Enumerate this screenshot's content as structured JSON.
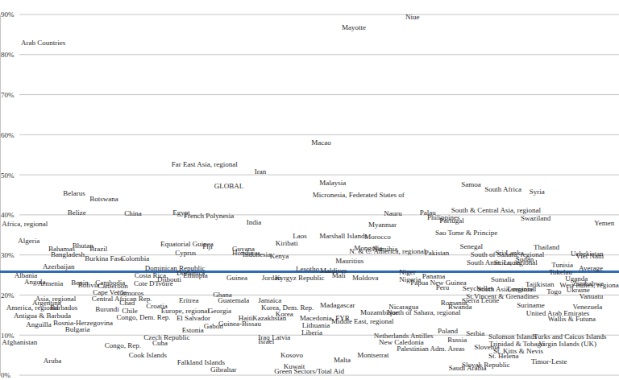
{
  "chart_data": {
    "type": "scatter",
    "marker": "text",
    "grid": true,
    "tick_labels": "y",
    "xlim": [
      0,
      100
    ],
    "ylim": [
      0,
      90
    ],
    "yticks": [
      {
        "value": 0,
        "label": "0%"
      },
      {
        "value": 10,
        "label": "10%"
      },
      {
        "value": 20,
        "label": "20%"
      },
      {
        "value": 30,
        "label": "30%"
      },
      {
        "value": 40,
        "label": "40%"
      },
      {
        "value": 50,
        "label": "50%"
      },
      {
        "value": 60,
        "label": "60%"
      },
      {
        "value": 70,
        "label": "70%"
      },
      {
        "value": 80,
        "label": "80%"
      },
      {
        "value": 90,
        "label": "90%"
      }
    ],
    "reference_line": 25.8,
    "point_labels": [
      "Niue",
      "Mayotte",
      "Arab Countries",
      "Macao",
      "Far East Asia, regional",
      "Iran",
      "Malaysia",
      "GLOBAL",
      "Samoa",
      "South Africa",
      "Syria",
      "Micronesia, Federated States of",
      "Belarus",
      "Botswana",
      "Belize",
      "China",
      "Egypt",
      "French Polynesia",
      "Nauru",
      "Palau",
      "South & Central Asia, regional",
      "Swaziland",
      "Yemen",
      "Philippines",
      "Portugal",
      "India",
      "Africa, regional",
      "Myanmar",
      "Sao Tome & Principe",
      "Laos",
      "Marshall Islands",
      "Morocco",
      "Algeria",
      "Kiribati",
      "Equatorial Guinea",
      "Fiji",
      "Bhutan",
      "Bahamas",
      "Brazil",
      "Guyana",
      "Mongolia",
      "Namibia",
      "Thailand",
      "Senegal",
      "Bangladesh",
      "Cyprus",
      "Honduras",
      "Indonesia",
      "N. & C. America, regional",
      "Pakistan",
      "Sri Lanka",
      "South of Sahara, regional",
      "Uzbekistan",
      "Viet Nam",
      "Kenya",
      "Burkina Faso",
      "Colombia",
      "Mauritius",
      "South America, regional",
      "Sudan",
      "St. Lucia",
      "Tunisia",
      "Azerbaijan",
      "Dominican Republic",
      "Lesotho",
      "Maldives",
      "Tokelau",
      "Average",
      "Dominica",
      "Djibouti",
      "Ethiopia",
      "Costa Rica",
      "Guinea",
      "Jordan",
      "Kyrgyz Republic",
      "Mali",
      "Moldova",
      "Niger",
      "Nigeria",
      "Panama",
      "Papua New Guinea",
      "Peru",
      "Somalia",
      "Uganda",
      "Albania",
      "Angola",
      "Armenia",
      "Benin",
      "Bolivia",
      "Cambodia",
      "Cameroon",
      "Cote D'Ivoire",
      "Tajikistan",
      "Seychelles",
      "South Asia, regional",
      "Tanzania",
      "Ukraine",
      "Zimbabwe",
      "West Indies, regional",
      "Cape Verde",
      "Comoros",
      "Ghana",
      "Togo",
      "Asia, regional",
      "Central African Rep.",
      "Eritrea",
      "Guatemala",
      "Jamaica",
      "Argentina",
      "Chad",
      "Croatia",
      "Romania",
      "Sierra Leone",
      "St.Vincent & Grenadines",
      "Suriname",
      "Venezuela",
      "Nicaragua",
      "Madagascar",
      "Rwanda",
      "Korea, Dem. Rep.",
      "America, regional",
      "Barbados",
      "Burundi",
      "Chile",
      "Europe, regional",
      "Georgia",
      "Mozambique",
      "North of Sahara, regional",
      "United Arab Emirates",
      "Wallis & Futuna",
      "Vanuatu",
      "Antigua & Barbuda",
      "Congo, Dem. Rep.",
      "El Salvador",
      "Korea",
      "Haiti",
      "Kazakhstan",
      "Macedonia, FYR",
      "Middle East, regional",
      "Lithuania",
      "Anguilla",
      "Bosnia-Herzegovina",
      "Bulgaria",
      "Estonia",
      "Gabon",
      "Guinea-Bissau",
      "Liberia",
      "Latvia",
      "Iraq",
      "Israel",
      "Netherlands Antilles",
      "Poland",
      "Serbia",
      "Solomon Islands",
      "Turks and Caicos Islands",
      "Trinidad & Tobago",
      "Virgin Islands (UK)",
      "Russia",
      "New Caledonia",
      "Czech Republic",
      "Cuba",
      "Afghanistan",
      "Slovenia",
      "St. Helena",
      "St. Kitts & Nevis",
      "Palestinian Adm. Areas",
      "Congo, Rep.",
      "Cook Islands",
      "Montserrat",
      "Kosovo",
      "Timor-Leste",
      "Aruba",
      "Falkland Islands",
      "Malta",
      "Slovak Republic",
      "Kuwait",
      "Saudi Arabia",
      "Gibraltar",
      "Green Sectors/Total Aid"
    ],
    "x": [
      65.5,
      55.2,
      3.4,
      50.3,
      27.7,
      41.1,
      51.6,
      34.6,
      74.5,
      78.3,
      85.5,
      50.5,
      10.2,
      14.5,
      10.9,
      20.1,
      27.9,
      29.7,
      62.0,
      67.8,
      72.9,
      84.1,
      96.0,
      69.0,
      71.0,
      39.8,
      0.3,
      59.5,
      70.3,
      47.3,
      51.6,
      58.9,
      2.9,
      44.5,
      25.9,
      32.7,
      11.7,
      7.8,
      14.5,
      37.5,
      57.2,
      60.2,
      86.2,
      74.3,
      8.2,
      28.3,
      37.5,
      39.2,
      56.4,
      68.6,
      80.0,
      76.0,
      92.2,
      93.0,
      43.6,
      13.7,
      19.5,
      54.2,
      75.4,
      83.3,
      79.8,
      89.1,
      6.9,
      23.4,
      47.8,
      51.7,
      88.7,
      93.5,
      28.5,
      25.4,
      29.6,
      21.7,
      36.6,
      42.3,
      44.4,
      53.6,
      56.9,
      64.5,
      64.5,
      68.2,
      66.3,
      70.4,
      79.3,
      91.3,
      2.3,
      3.9,
      6.1,
      11.5,
      12.6,
      15.4,
      15.8,
      21.6,
      84.9,
      74.7,
      77.1,
      81.8,
      91.5,
      92.5,
      90.4,
      15.0,
      18.9,
      34.4,
      88.3,
      5.7,
      14.8,
      28.9,
      35.2,
      41.7,
      5.2,
      19.3,
      23.6,
      71.2,
      74.6,
      75.3,
      83.5,
      92.5,
      62.8,
      51.7,
      72.4,
      42.2,
      1.0,
      8.1,
      15.4,
      19.7,
      26.0,
      33.6,
      58.2,
      62.5,
      85.0,
      88.5,
      93.6,
      2.2,
      18.8,
      28.5,
      44.5,
      38.5,
      40.8,
      48.4,
      53.5,
      48.8,
      4.2,
      8.6,
      10.5,
      29.4,
      32.9,
      35.3,
      48.7,
      43.9,
      41.7,
      41.7,
      60.4,
      70.7,
      75.3,
      78.9,
      86.2,
      79.0,
      87.0,
      72.3,
      61.2,
      23.2,
      24.6,
      0.3,
      76.6,
      78.9,
      79.7,
      64.1,
      16.9,
      20.8,
      57.7,
      45.3,
      85.8,
      7.0,
      28.6,
      53.9,
      74.6,
      45.8,
      72.5,
      34.0,
      44.3
    ],
    "values": [
      89.2,
      86.6,
      82.8,
      57.8,
      52.4,
      50.6,
      47.8,
      47.0,
      47.4,
      46.2,
      45.6,
      44.8,
      45.2,
      43.8,
      40.4,
      40.2,
      40.4,
      39.6,
      40.2,
      40.4,
      41.0,
      39.0,
      37.8,
      39.2,
      38.4,
      38.0,
      37.6,
      37.4,
      35.4,
      34.6,
      34.6,
      34.4,
      33.4,
      32.8,
      32.6,
      32.0,
      32.2,
      31.4,
      31.4,
      31.4,
      31.6,
      31.4,
      31.8,
      32.0,
      30.0,
      30.4,
      30.4,
      30.0,
      30.8,
      30.4,
      30.4,
      30.0,
      30.2,
      29.6,
      29.6,
      29.0,
      29.0,
      28.4,
      28.0,
      28.8,
      28.0,
      27.4,
      27.0,
      26.6,
      26.4,
      26.0,
      25.6,
      26.6,
      25.4,
      23.8,
      24.8,
      24.8,
      24.2,
      24.2,
      24.2,
      24.8,
      24.2,
      25.6,
      23.8,
      24.6,
      23.0,
      21.8,
      23.8,
      24.0,
      24.8,
      23.2,
      22.8,
      23.0,
      22.4,
      23.0,
      22.2,
      22.8,
      22.6,
      21.6,
      21.4,
      21.4,
      21.2,
      22.8,
      22.4,
      20.6,
      20.4,
      20.0,
      20.8,
      18.8,
      18.8,
      18.4,
      18.4,
      18.4,
      17.8,
      17.8,
      17.0,
      17.8,
      18.4,
      19.4,
      17.2,
      16.8,
      16.8,
      17.2,
      16.8,
      16.6,
      16.6,
      16.6,
      16.2,
      15.8,
      15.8,
      15.8,
      15.4,
      15.4,
      15.2,
      13.8,
      19.4,
      14.6,
      14.2,
      14.0,
      15.0,
      14.0,
      14.0,
      14.0,
      13.2,
      12.2,
      12.4,
      12.8,
      11.2,
      11.0,
      12.0,
      12.6,
      10.4,
      9.2,
      9.2,
      8.2,
      9.6,
      10.8,
      10.2,
      9.4,
      9.4,
      7.6,
      7.6,
      8.6,
      8.0,
      9.2,
      7.8,
      8.0,
      6.8,
      4.6,
      5.8,
      6.4,
      7.2,
      4.8,
      4.8,
      4.8,
      3.2,
      3.4,
      3.0,
      3.6,
      2.4,
      2.0,
      1.6,
      1.2,
      0.8
    ]
  }
}
